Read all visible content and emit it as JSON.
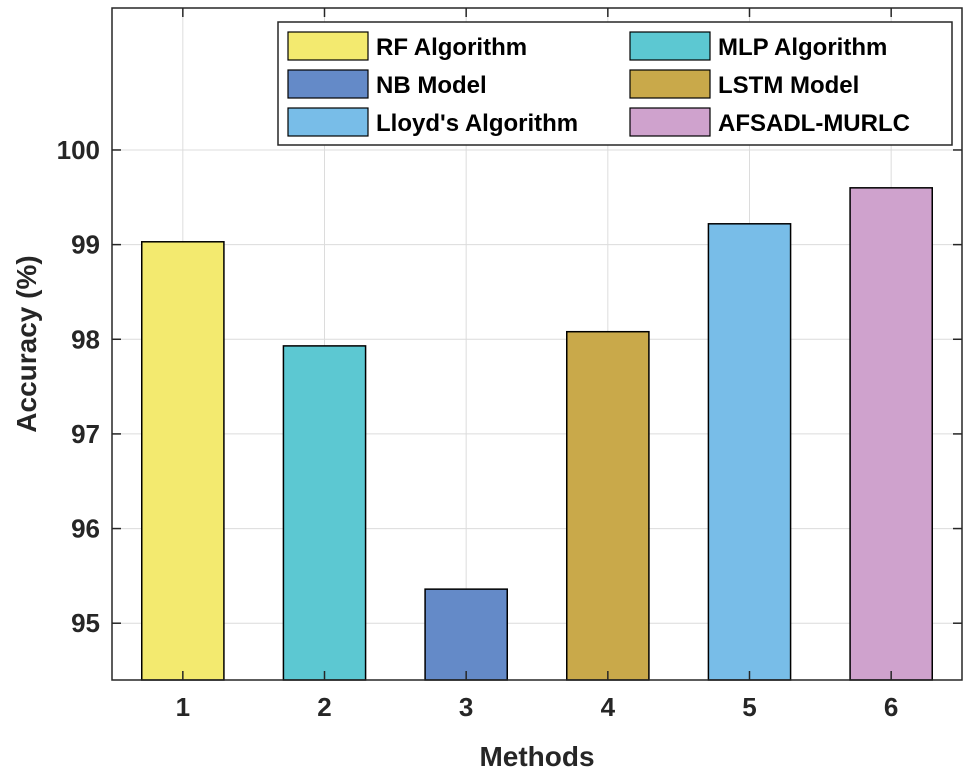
{
  "chart_data": {
    "type": "bar",
    "categories": [
      "1",
      "2",
      "3",
      "4",
      "5",
      "6"
    ],
    "values": [
      99.03,
      97.93,
      95.36,
      98.08,
      99.22,
      99.6
    ],
    "colors": [
      "#f3ea6f",
      "#5cc8d2",
      "#648ac8",
      "#c9a94a",
      "#78bde8",
      "#cfa2cd"
    ],
    "legend": {
      "placement": "top-right",
      "columns": 2,
      "entries": [
        "RF Algorithm",
        "MLP Algorithm",
        "NB Model",
        "LSTM Model",
        "Lloyd's Algorithm",
        "AFSADL-MURLC"
      ]
    },
    "xlabel": "Methods",
    "ylabel": "Accuracy (%)",
    "ylim": [
      94.4,
      101.5
    ],
    "yticks": [
      95,
      96,
      97,
      98,
      99,
      100
    ],
    "grid": true
  }
}
